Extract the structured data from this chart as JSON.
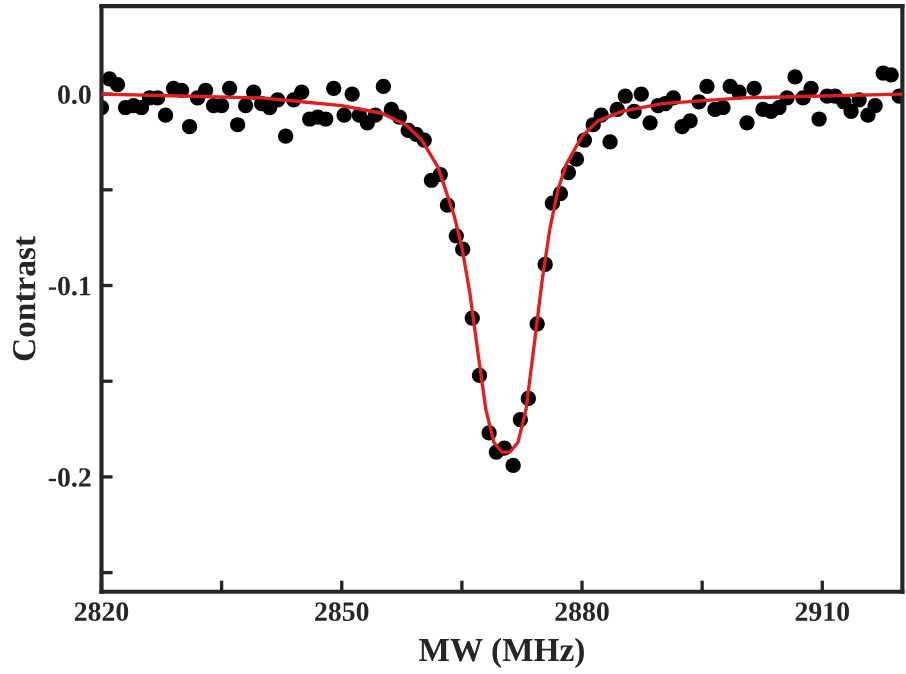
{
  "chart_data": {
    "type": "scatter",
    "xlabel": "MW (MHz)",
    "ylabel": "Contrast",
    "xlim": [
      2820,
      2920
    ],
    "ylim": [
      -0.26,
      0.046
    ],
    "xticks": [
      2820,
      {
        "value": 2835,
        "label": null
      },
      2850,
      {
        "value": 2865,
        "label": null
      },
      2880,
      {
        "value": 2895,
        "label": null
      },
      2910
    ],
    "yticks": [
      {
        "value": -0.25,
        "label": null
      },
      {
        "value": -0.2,
        "label": "-0.2"
      },
      {
        "value": -0.15,
        "label": null
      },
      {
        "value": -0.1,
        "label": "-0.1"
      },
      {
        "value": -0.05,
        "label": null
      },
      {
        "value": 0.0,
        "label": "0.0"
      }
    ],
    "grid": false,
    "legend": false,
    "series": [
      {
        "marker": "circle",
        "color": "#000000",
        "x": [
          2820,
          2821,
          2822,
          2823,
          2824,
          2825,
          2826,
          2827,
          2828,
          2829,
          2830,
          2831,
          2832,
          2833,
          2834,
          2835,
          2836,
          2837,
          2838,
          2839,
          2840,
          2841,
          2842,
          2843,
          2844,
          2845,
          2846,
          2847,
          2848,
          2849,
          2850.3,
          2851.3,
          2852.2,
          2853.2,
          2854.2,
          2855.2,
          2856.2,
          2857.2,
          2858.3,
          2859.3,
          2860.3,
          2861.2,
          2862.3,
          2863.2,
          2864.3,
          2865.1,
          2866.3,
          2867.2,
          2868.4,
          2869.3,
          2870.3,
          2871.4,
          2872.3,
          2873.3,
          2874.4,
          2875.4,
          2876.3,
          2877.3,
          2878.3,
          2879.3,
          2880.3,
          2881.4,
          2882.4,
          2883.5,
          2884.4,
          2885.4,
          2886.5,
          2887.4,
          2888.5,
          2889.5,
          2890.4,
          2891.4,
          2892.5,
          2893.5,
          2894.6,
          2895.6,
          2896.6,
          2897.6,
          2898.5,
          2899.6,
          2900.6,
          2901.5,
          2902.6,
          2903.6,
          2904.6,
          2905.6,
          2906.6,
          2907.6,
          2908.6,
          2909.6,
          2910.6,
          2911.6,
          2912.7,
          2913.6,
          2914.6,
          2915.7,
          2916.6,
          2917.6,
          2918.6,
          2919.6
        ],
        "values": [
          -0.007,
          0.008,
          0.005,
          -0.007,
          -0.006,
          -0.007,
          -0.002,
          -0.002,
          -0.011,
          0.003,
          0.002,
          -0.017,
          -0.002,
          0.002,
          -0.006,
          -0.006,
          0.003,
          -0.016,
          -0.006,
          0.001,
          -0.005,
          -0.007,
          -0.003,
          -0.022,
          -0.003,
          0.001,
          -0.013,
          -0.012,
          -0.013,
          0.003,
          -0.011,
          0.0,
          -0.011,
          -0.015,
          -0.011,
          0.004,
          -0.008,
          -0.012,
          -0.019,
          -0.021,
          -0.024,
          -0.045,
          -0.042,
          -0.058,
          -0.074,
          -0.081,
          -0.117,
          -0.147,
          -0.177,
          -0.187,
          -0.185,
          -0.194,
          -0.17,
          -0.159,
          -0.12,
          -0.089,
          -0.057,
          -0.052,
          -0.041,
          -0.034,
          -0.024,
          -0.016,
          -0.011,
          -0.025,
          -0.008,
          -0.001,
          -0.009,
          0.0,
          -0.015,
          -0.006,
          -0.005,
          -0.002,
          -0.017,
          -0.014,
          -0.004,
          0.004,
          -0.008,
          -0.007,
          0.004,
          0.001,
          -0.015,
          0.003,
          -0.008,
          -0.009,
          -0.007,
          -0.002,
          0.009,
          -0.002,
          0.003,
          -0.013,
          -0.001,
          -0.001,
          -0.004,
          -0.009,
          -0.003,
          -0.011,
          -0.006,
          0.011,
          0.01,
          -0.001
        ]
      },
      {
        "type": "line",
        "marker": "none",
        "line_style": "solid",
        "color": "#e02020",
        "x": [
          2820,
          2830,
          2840,
          2845,
          2850,
          2855,
          2858,
          2860,
          2862,
          2864,
          2865,
          2866,
          2867,
          2868,
          2869,
          2870,
          2871,
          2872,
          2873,
          2874,
          2875,
          2876,
          2877,
          2878,
          2880,
          2882,
          2885,
          2890,
          2900,
          2910,
          2920
        ],
        "values": [
          0.0,
          -0.001,
          -0.002,
          -0.004,
          -0.006,
          -0.01,
          -0.016,
          -0.024,
          -0.038,
          -0.063,
          -0.08,
          -0.104,
          -0.135,
          -0.165,
          -0.182,
          -0.187,
          -0.187,
          -0.182,
          -0.165,
          -0.132,
          -0.098,
          -0.07,
          -0.05,
          -0.037,
          -0.022,
          -0.014,
          -0.009,
          -0.005,
          -0.002,
          -0.001,
          0.0
        ]
      }
    ]
  }
}
